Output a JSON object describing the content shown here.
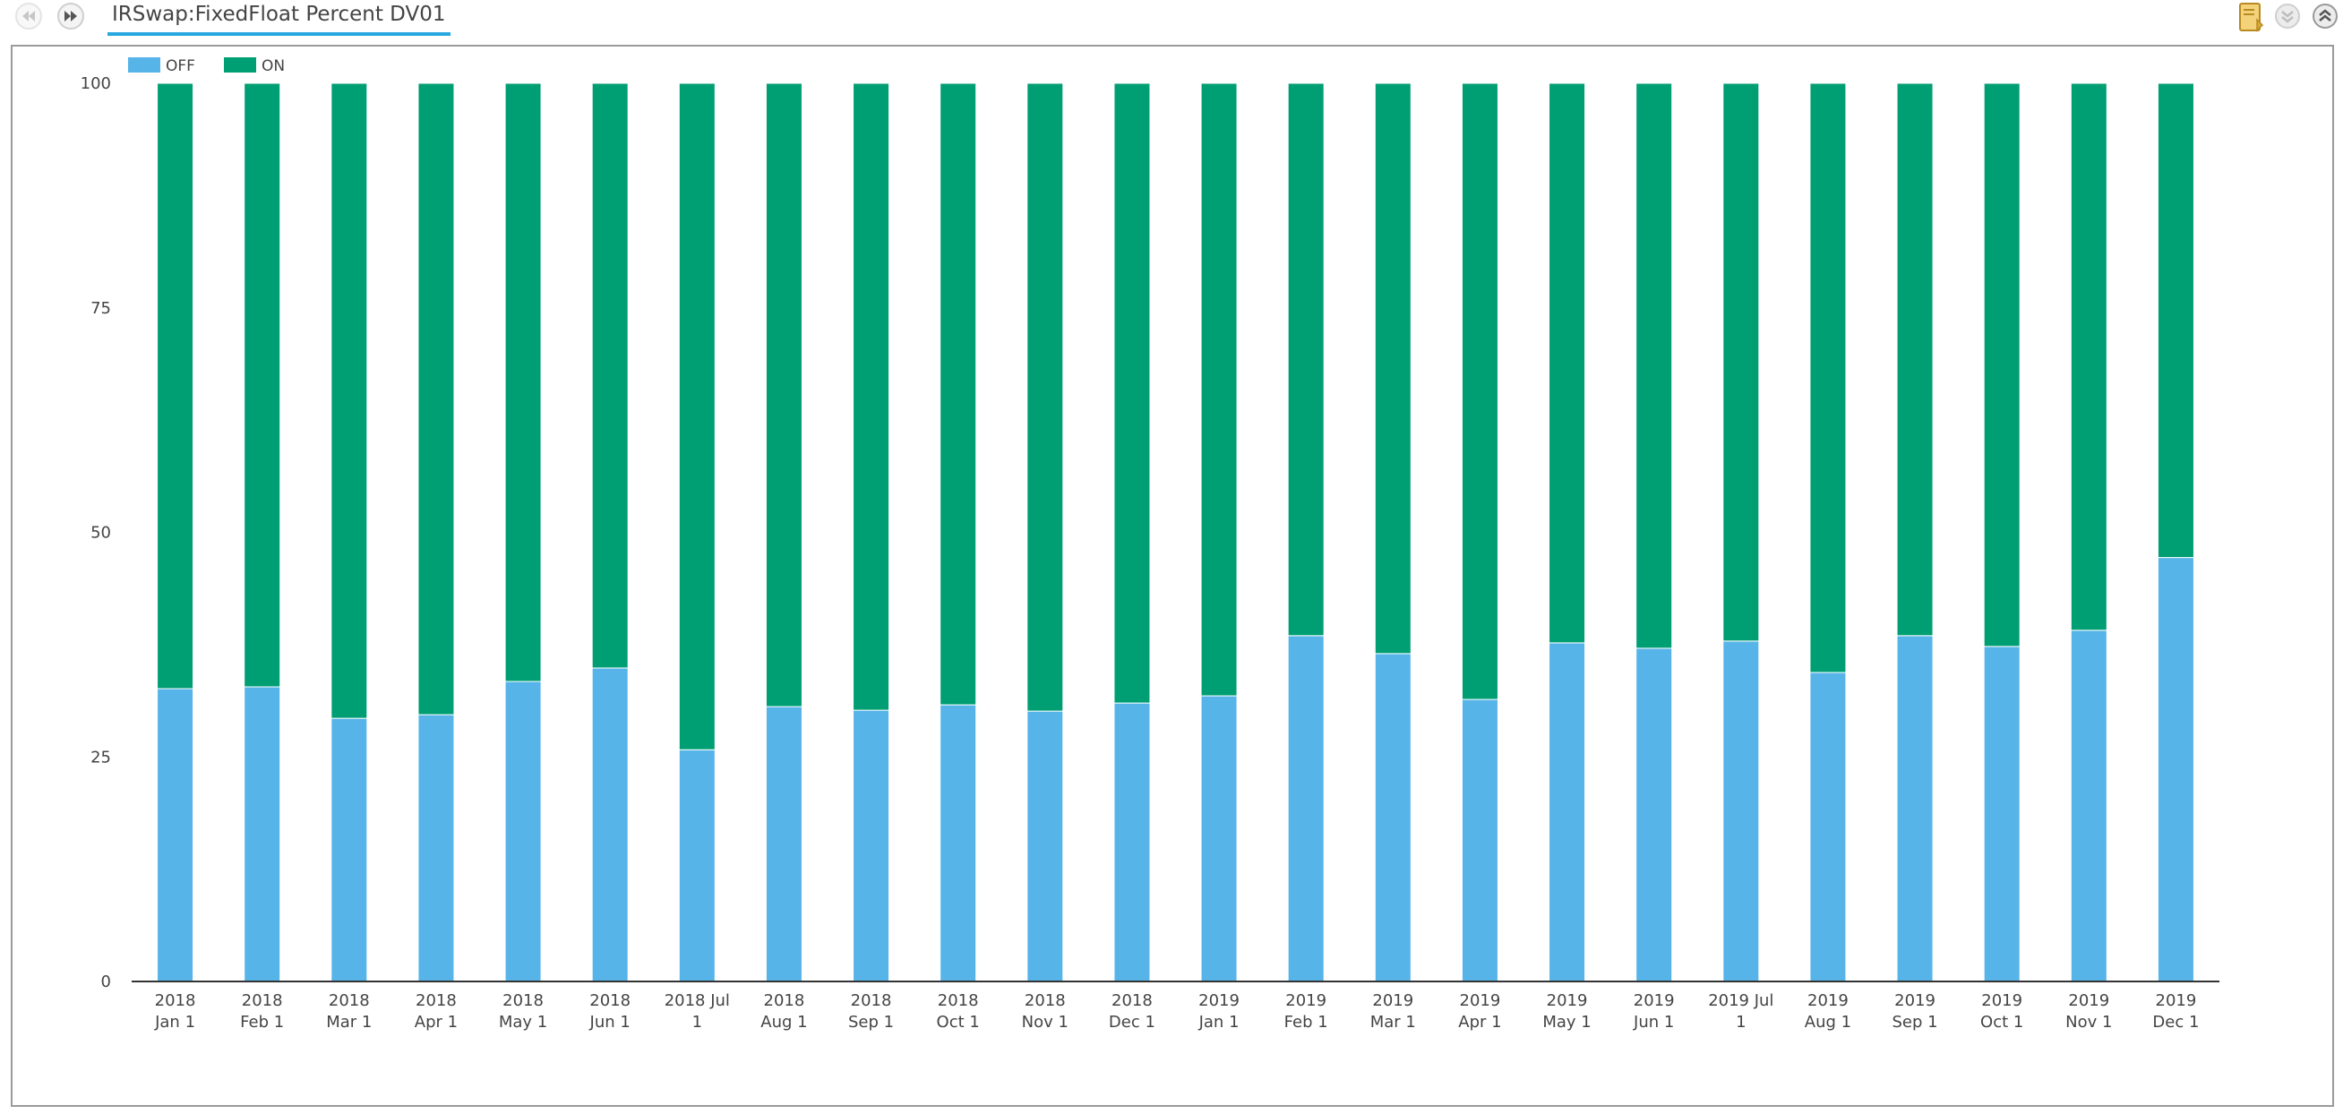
{
  "header": {
    "title": "IRSwap:FixedFloat Percent DV01",
    "icons": [
      "rewind-icon",
      "fast-forward-icon",
      "document-icon",
      "collapse-icon",
      "expand-icon"
    ]
  },
  "chart_data": {
    "type": "bar",
    "stacked": true,
    "title": "",
    "xlabel": "",
    "ylabel": "",
    "ylim": [
      0,
      100
    ],
    "yticks": [
      0,
      25,
      50,
      75,
      100
    ],
    "grid": false,
    "legend_position": "top-left",
    "categories": [
      [
        "2018",
        "Jan 1"
      ],
      [
        "2018",
        "Feb 1"
      ],
      [
        "2018",
        "Mar 1"
      ],
      [
        "2018",
        "Apr 1"
      ],
      [
        "2018",
        "May 1"
      ],
      [
        "2018",
        "Jun 1"
      ],
      [
        "2018 Jul",
        "1"
      ],
      [
        "2018",
        "Aug 1"
      ],
      [
        "2018",
        "Sep 1"
      ],
      [
        "2018",
        "Oct 1"
      ],
      [
        "2018",
        "Nov 1"
      ],
      [
        "2018",
        "Dec 1"
      ],
      [
        "2019",
        "Jan 1"
      ],
      [
        "2019",
        "Feb 1"
      ],
      [
        "2019",
        "Mar 1"
      ],
      [
        "2019",
        "Apr 1"
      ],
      [
        "2019",
        "May 1"
      ],
      [
        "2019",
        "Jun 1"
      ],
      [
        "2019 Jul",
        "1"
      ],
      [
        "2019",
        "Aug 1"
      ],
      [
        "2019",
        "Sep 1"
      ],
      [
        "2019",
        "Oct 1"
      ],
      [
        "2019",
        "Nov 1"
      ],
      [
        "2019",
        "Dec 1"
      ]
    ],
    "series": [
      {
        "name": "OFF",
        "color": "#56b4e9",
        "values": [
          32.6,
          32.8,
          29.3,
          29.7,
          33.4,
          34.9,
          25.8,
          30.6,
          30.2,
          30.8,
          30.1,
          31.0,
          31.8,
          38.5,
          36.5,
          31.4,
          37.7,
          37.1,
          37.9,
          34.4,
          38.5,
          37.3,
          39.1,
          47.2
        ]
      },
      {
        "name": "ON",
        "color": "#009e73",
        "values": [
          67.4,
          67.2,
          70.7,
          70.3,
          66.6,
          65.1,
          74.2,
          69.4,
          69.8,
          69.2,
          69.9,
          69.0,
          68.2,
          61.5,
          63.5,
          68.6,
          62.3,
          62.9,
          62.1,
          65.6,
          61.5,
          62.7,
          60.9,
          52.8
        ]
      }
    ]
  }
}
